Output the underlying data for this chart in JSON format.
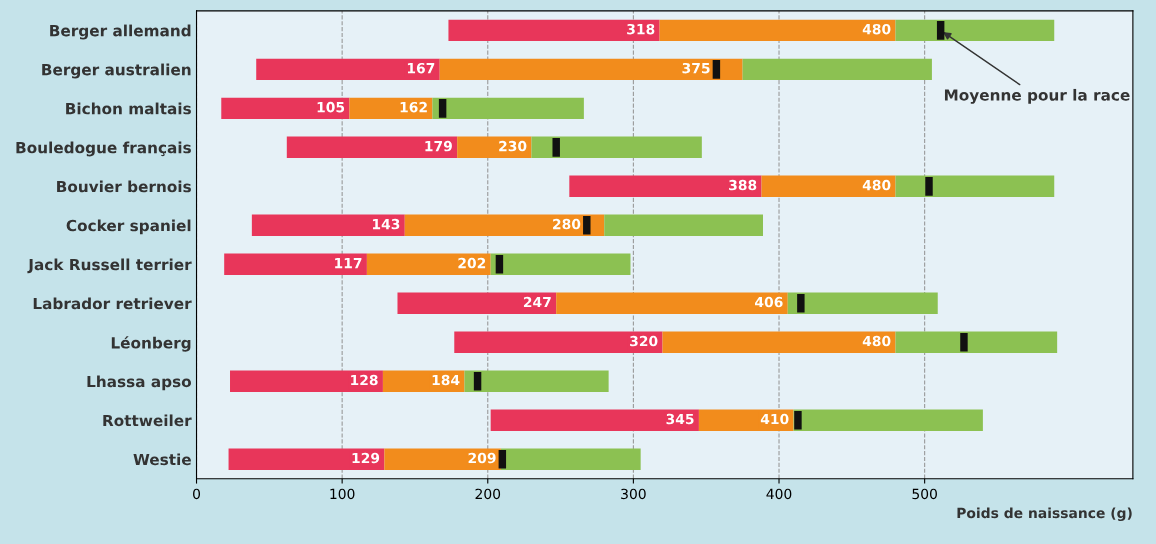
{
  "chart_data": {
    "type": "bar",
    "orientation": "horizontal",
    "xlabel": "Poids de naissance (g)",
    "categories": [
      "Berger allemand",
      "Berger australien",
      "Bichon maltais",
      "Bouledogue français",
      "Bouvier bernois",
      "Cocker spaniel",
      "Jack Russell terrier",
      "Labrador retriever",
      "Léonberg",
      "Lhassa apso",
      "Rottweiler",
      "Westie"
    ],
    "series": [
      {
        "color": "#e8365a",
        "base": [
          173,
          41,
          17,
          62,
          256,
          38,
          19,
          138,
          177,
          23,
          202,
          22
        ],
        "values": [
          145,
          126,
          88,
          117,
          132,
          105,
          98,
          109,
          143,
          105,
          143,
          107
        ]
      },
      {
        "color": "#f28c1c",
        "base": [
          318,
          167,
          105,
          179,
          388,
          143,
          117,
          247,
          320,
          128,
          345,
          129
        ],
        "values": [
          162,
          208,
          57,
          51,
          92,
          137,
          85,
          159,
          160,
          56,
          65,
          80
        ]
      },
      {
        "color": "#8cc152",
        "base": [
          480,
          375,
          162,
          230,
          480,
          280,
          202,
          406,
          480,
          184,
          410,
          209
        ],
        "values": [
          109,
          130,
          104,
          117,
          109,
          109,
          96,
          103,
          111,
          99,
          130,
          96
        ]
      },
      {
        "type": "scatter",
        "color": "#111111",
        "values": [
          511,
          357,
          169,
          247,
          503,
          268,
          208,
          415,
          527,
          193,
          413,
          210
        ]
      }
    ],
    "xlim": [
      0,
      643
    ],
    "xticks": [
      0,
      100,
      200,
      300,
      400,
      500
    ],
    "grid": "x",
    "annotations": [
      {
        "text": "Moyenne pour la race",
        "x": 511,
        "y": "Berger allemand"
      },
      "318",
      "480",
      "167",
      "375",
      "105",
      "162",
      "179",
      "230",
      "388",
      "480",
      "143",
      "280",
      "117",
      "202",
      "247",
      "406",
      "320",
      "480",
      "128",
      "184",
      "345",
      "410",
      "129",
      "209"
    ]
  }
}
